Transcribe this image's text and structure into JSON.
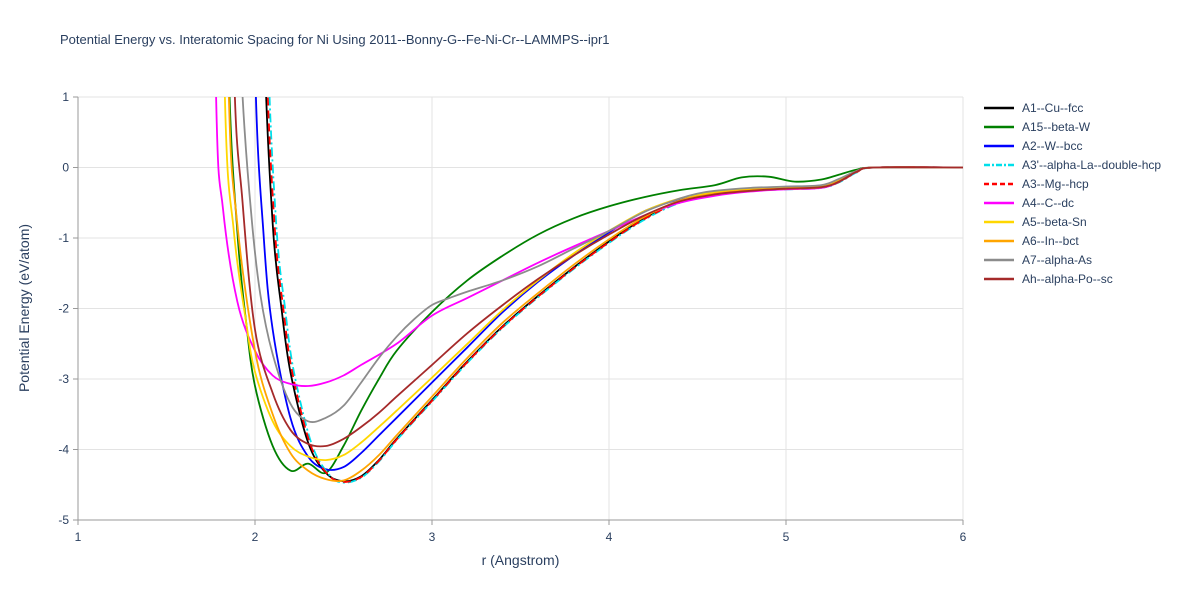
{
  "page": {
    "background": "#ffffff"
  },
  "chart_data": {
    "type": "line",
    "title": "Potential Energy vs. Interatomic Spacing for Ni Using 2011--Bonny-G--Fe-Ni-Cr--LAMMPS--ipr1",
    "xlabel": "r (Angstrom)",
    "ylabel": "Potential Energy (eV/atom)",
    "xlim": [
      1,
      6
    ],
    "ylim": [
      -5,
      1
    ],
    "xticks": [
      1,
      2,
      3,
      4,
      5,
      6
    ],
    "yticks": [
      -5,
      -4,
      -3,
      -2,
      -1,
      0,
      1
    ],
    "grid": true,
    "legend_position": "right",
    "colors": {
      "grid": "#e3e3e3",
      "axis": "#9a9a9a",
      "text": "#2a3f5f",
      "background": "#ffffff"
    },
    "series": [
      {
        "name": "A1--Cu--fcc",
        "color": "#000000",
        "dash": "solid",
        "x": [
          2.0,
          2.05,
          2.1,
          2.15,
          2.2,
          2.3,
          2.4,
          2.5,
          2.6,
          2.7,
          2.8,
          3.0,
          3.2,
          3.4,
          3.6,
          3.8,
          4.0,
          4.2,
          4.4,
          4.6,
          4.8,
          5.0,
          5.2,
          5.3,
          5.4,
          5.5,
          6.0
        ],
        "y": [
          8,
          2.0,
          -0.8,
          -2.0,
          -2.9,
          -3.9,
          -4.33,
          -4.45,
          -4.38,
          -4.15,
          -3.85,
          -3.3,
          -2.75,
          -2.25,
          -1.82,
          -1.42,
          -1.05,
          -0.72,
          -0.48,
          -0.38,
          -0.32,
          -0.3,
          -0.28,
          -0.2,
          -0.06,
          0,
          0
        ]
      },
      {
        "name": "A15--beta-W",
        "color": "#008000",
        "dash": "solid",
        "x": [
          1.8,
          1.85,
          1.9,
          1.95,
          2.0,
          2.1,
          2.2,
          2.3,
          2.4,
          2.5,
          2.6,
          2.7,
          2.8,
          3.0,
          3.2,
          3.4,
          3.6,
          3.8,
          4.0,
          4.2,
          4.4,
          4.6,
          4.75,
          4.9,
          5.05,
          5.2,
          5.3,
          5.4,
          5.5,
          6.0
        ],
        "y": [
          8,
          1.5,
          -0.9,
          -2.2,
          -3.1,
          -3.95,
          -4.3,
          -4.2,
          -4.33,
          -3.95,
          -3.45,
          -3.0,
          -2.6,
          -2.05,
          -1.6,
          -1.25,
          -0.95,
          -0.72,
          -0.55,
          -0.42,
          -0.32,
          -0.25,
          -0.14,
          -0.13,
          -0.2,
          -0.17,
          -0.1,
          -0.03,
          0,
          0
        ]
      },
      {
        "name": "A2--W--bcc",
        "color": "#0000ff",
        "dash": "solid",
        "x": [
          1.97,
          2.0,
          2.05,
          2.1,
          2.2,
          2.3,
          2.4,
          2.5,
          2.6,
          2.7,
          2.8,
          3.0,
          3.2,
          3.4,
          3.6,
          3.8,
          4.0,
          4.2,
          4.4,
          4.6,
          4.8,
          5.0,
          5.2,
          5.3,
          5.4,
          5.5,
          6.0
        ],
        "y": [
          8,
          1.5,
          -1.0,
          -2.3,
          -3.55,
          -4.1,
          -4.28,
          -4.25,
          -4.05,
          -3.8,
          -3.55,
          -3.05,
          -2.55,
          -2.05,
          -1.62,
          -1.25,
          -0.92,
          -0.62,
          -0.45,
          -0.36,
          -0.31,
          -0.29,
          -0.27,
          -0.18,
          -0.05,
          0,
          0
        ]
      },
      {
        "name": "A3'--alpha-La--double-hcp",
        "color": "#00dfea",
        "dash": "dashdot",
        "x": [
          2.03,
          2.07,
          2.12,
          2.17,
          2.22,
          2.32,
          2.42,
          2.5,
          2.6,
          2.7,
          2.8,
          3.0,
          3.2,
          3.4,
          3.6,
          3.8,
          4.0,
          4.2,
          4.4,
          4.6,
          4.8,
          5.0,
          5.2,
          5.3,
          5.4,
          5.5,
          6.0
        ],
        "y": [
          8,
          2.0,
          -0.8,
          -2.0,
          -2.9,
          -3.92,
          -4.36,
          -4.47,
          -4.4,
          -4.17,
          -3.87,
          -3.32,
          -2.77,
          -2.27,
          -1.84,
          -1.44,
          -1.07,
          -0.74,
          -0.5,
          -0.39,
          -0.33,
          -0.31,
          -0.29,
          -0.21,
          -0.07,
          0,
          0
        ]
      },
      {
        "name": "A3--Mg--hcp",
        "color": "#ff0000",
        "dash": "dash",
        "x": [
          2.02,
          2.06,
          2.11,
          2.16,
          2.21,
          2.31,
          2.41,
          2.5,
          2.6,
          2.7,
          2.8,
          3.0,
          3.2,
          3.4,
          3.6,
          3.8,
          4.0,
          4.2,
          4.4,
          4.6,
          4.8,
          5.0,
          5.2,
          5.3,
          5.4,
          5.5,
          6.0
        ],
        "y": [
          8,
          2.0,
          -0.8,
          -2.0,
          -2.9,
          -3.91,
          -4.35,
          -4.46,
          -4.39,
          -4.16,
          -3.86,
          -3.31,
          -2.76,
          -2.26,
          -1.83,
          -1.43,
          -1.06,
          -0.73,
          -0.49,
          -0.385,
          -0.325,
          -0.305,
          -0.285,
          -0.205,
          -0.065,
          0,
          0
        ]
      },
      {
        "name": "A4--C--dc",
        "color": "#ff00ff",
        "dash": "solid",
        "x": [
          1.74,
          1.78,
          1.82,
          1.9,
          2.0,
          2.1,
          2.2,
          2.3,
          2.4,
          2.5,
          2.6,
          2.8,
          3.0,
          3.2,
          3.4,
          3.6,
          3.8,
          4.0,
          4.2,
          4.4,
          4.6,
          4.8,
          5.0,
          5.2,
          5.3,
          5.4,
          5.5,
          6.0
        ],
        "y": [
          8,
          1.0,
          -0.6,
          -1.9,
          -2.6,
          -2.95,
          -3.07,
          -3.1,
          -3.05,
          -2.95,
          -2.8,
          -2.5,
          -2.1,
          -1.85,
          -1.6,
          -1.35,
          -1.12,
          -0.9,
          -0.68,
          -0.5,
          -0.4,
          -0.34,
          -0.31,
          -0.29,
          -0.2,
          -0.06,
          0,
          0
        ]
      },
      {
        "name": "A5--beta-Sn",
        "color": "#ffd700",
        "dash": "solid",
        "x": [
          1.79,
          1.83,
          1.88,
          1.95,
          2.0,
          2.1,
          2.2,
          2.3,
          2.4,
          2.5,
          2.6,
          2.7,
          2.8,
          3.0,
          3.2,
          3.4,
          3.6,
          3.8,
          4.0,
          4.2,
          4.4,
          4.6,
          4.8,
          5.0,
          5.2,
          5.3,
          5.4,
          5.5,
          6.0
        ],
        "y": [
          8,
          1.0,
          -0.9,
          -2.2,
          -2.9,
          -3.6,
          -3.95,
          -4.1,
          -4.15,
          -4.08,
          -3.9,
          -3.68,
          -3.45,
          -2.98,
          -2.5,
          -2.02,
          -1.6,
          -1.22,
          -0.9,
          -0.62,
          -0.44,
          -0.35,
          -0.3,
          -0.28,
          -0.26,
          -0.17,
          -0.05,
          0,
          0
        ]
      },
      {
        "name": "A6--In--bct",
        "color": "#ffa500",
        "dash": "solid",
        "x": [
          1.81,
          1.85,
          1.9,
          2.0,
          2.1,
          2.2,
          2.3,
          2.4,
          2.5,
          2.6,
          2.7,
          2.8,
          3.0,
          3.2,
          3.4,
          3.6,
          3.8,
          4.0,
          4.2,
          4.4,
          4.6,
          4.8,
          5.0,
          5.2,
          5.3,
          5.4,
          5.5,
          6.0
        ],
        "y": [
          8,
          1.2,
          -0.8,
          -2.6,
          -3.5,
          -4.05,
          -4.3,
          -4.42,
          -4.44,
          -4.3,
          -4.08,
          -3.8,
          -3.25,
          -2.7,
          -2.2,
          -1.78,
          -1.38,
          -1.02,
          -0.7,
          -0.47,
          -0.37,
          -0.32,
          -0.3,
          -0.28,
          -0.19,
          -0.06,
          0,
          0
        ]
      },
      {
        "name": "A7--alpha-As",
        "color": "#8c8c8c",
        "dash": "solid",
        "x": [
          1.88,
          1.93,
          1.98,
          2.03,
          2.1,
          2.2,
          2.3,
          2.4,
          2.5,
          2.6,
          2.7,
          2.8,
          2.9,
          3.0,
          3.1,
          3.2,
          3.4,
          3.6,
          3.8,
          4.0,
          4.2,
          4.4,
          4.5,
          4.6,
          4.8,
          5.0,
          5.2,
          5.3,
          5.4,
          5.5,
          6.0
        ],
        "y": [
          4,
          1.0,
          -0.7,
          -1.8,
          -2.65,
          -3.35,
          -3.6,
          -3.55,
          -3.38,
          -3.05,
          -2.7,
          -2.4,
          -2.15,
          -1.95,
          -1.85,
          -1.76,
          -1.6,
          -1.4,
          -1.15,
          -0.9,
          -0.63,
          -0.44,
          -0.37,
          -0.33,
          -0.29,
          -0.27,
          -0.25,
          -0.16,
          -0.05,
          0,
          0
        ]
      },
      {
        "name": "Ah--alpha-Po--sc",
        "color": "#a52a2a",
        "dash": "solid",
        "x": [
          1.84,
          1.88,
          1.93,
          2.0,
          2.1,
          2.2,
          2.3,
          2.4,
          2.5,
          2.6,
          2.7,
          2.8,
          3.0,
          3.2,
          3.4,
          3.6,
          3.8,
          4.0,
          4.2,
          4.4,
          4.6,
          4.8,
          5.0,
          5.2,
          5.3,
          5.4,
          5.5,
          6.0
        ],
        "y": [
          8,
          1.5,
          -0.5,
          -2.3,
          -3.2,
          -3.72,
          -3.92,
          -3.95,
          -3.85,
          -3.68,
          -3.48,
          -3.25,
          -2.8,
          -2.35,
          -1.95,
          -1.58,
          -1.25,
          -0.95,
          -0.68,
          -0.48,
          -0.38,
          -0.33,
          -0.3,
          -0.28,
          -0.2,
          -0.06,
          0,
          0
        ]
      }
    ]
  }
}
